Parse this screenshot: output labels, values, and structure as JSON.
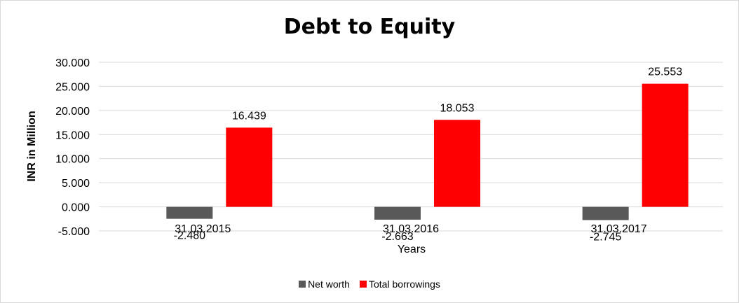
{
  "chart_data": {
    "type": "bar",
    "title": "Debt to Equity",
    "xlabel": "Years",
    "ylabel": "INR in Million",
    "categories": [
      "31.03.2015",
      "31.03.2016",
      "31.03.2017"
    ],
    "series": [
      {
        "name": "Net worth",
        "values": [
          -2.48,
          -2.663,
          -2.745
        ],
        "labels": [
          "-2.480",
          "-2.663",
          "-2.745"
        ],
        "color": "#595959"
      },
      {
        "name": "Total borrowings",
        "values": [
          16.439,
          18.053,
          25.553
        ],
        "labels": [
          "16.439",
          "18.053",
          "25.553"
        ],
        "color": "#ff0000"
      }
    ],
    "yticks": [
      "30.000",
      "25.000",
      "20.000",
      "15.000",
      "10.000",
      "5.000",
      "0.000",
      "-5.000"
    ],
    "ytick_values": [
      30,
      25,
      20,
      15,
      10,
      5,
      0,
      -5
    ],
    "ylim": [
      -5,
      30
    ],
    "grid": true,
    "legend_position": "bottom"
  }
}
